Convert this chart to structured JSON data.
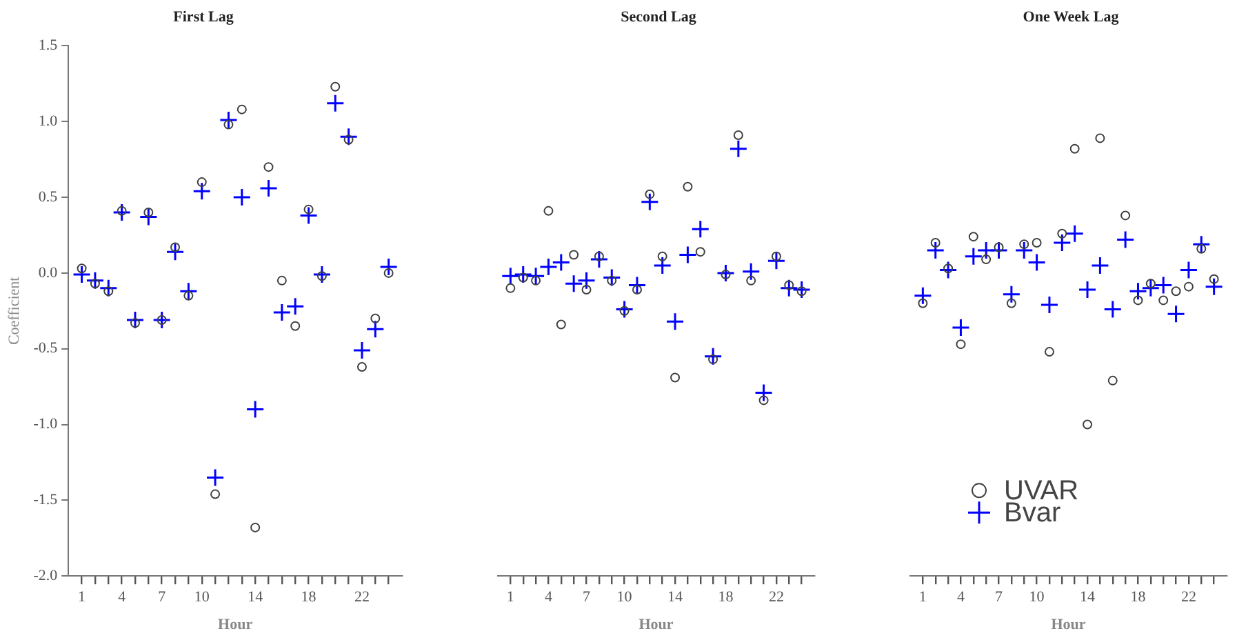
{
  "chart_data": [
    {
      "type": "scatter",
      "title": "First Lag",
      "xlabel": "Hour",
      "ylabel": "Coefficient",
      "x": [
        1,
        2,
        3,
        4,
        5,
        6,
        7,
        8,
        9,
        10,
        11,
        12,
        13,
        14,
        15,
        16,
        17,
        18,
        19,
        20,
        21,
        22,
        23,
        24
      ],
      "series": [
        {
          "color": "#404040",
          "marker": "circle",
          "values": [
            0.03,
            -0.07,
            -0.12,
            0.41,
            -0.33,
            0.4,
            -0.31,
            0.17,
            -0.15,
            0.6,
            -1.46,
            0.98,
            1.08,
            -1.68,
            0.7,
            -0.05,
            -0.35,
            0.42,
            -0.02,
            1.23,
            0.88,
            -0.62,
            -0.3,
            0.0
          ]
        },
        {
          "color": "#0000ff",
          "marker": "cross",
          "values": [
            -0.01,
            -0.05,
            -0.1,
            0.4,
            -0.31,
            0.37,
            -0.31,
            0.14,
            -0.12,
            0.54,
            -1.35,
            1.01,
            0.5,
            -0.9,
            0.56,
            -0.26,
            -0.22,
            0.38,
            -0.01,
            1.12,
            0.9,
            -0.51,
            -0.37,
            0.04
          ]
        }
      ],
      "xlim": [
        0,
        25
      ],
      "xticks": [
        1,
        {
          "value": 2,
          "label": null
        },
        {
          "value": 3,
          "label": null
        },
        4,
        {
          "value": 5,
          "label": null
        },
        {
          "value": 6,
          "label": null
        },
        7,
        {
          "value": 8,
          "label": null
        },
        {
          "value": 9,
          "label": null
        },
        10,
        {
          "value": 11,
          "label": null
        },
        {
          "value": 12,
          "label": null
        },
        {
          "value": 13,
          "label": null
        },
        14,
        {
          "value": 15,
          "label": null
        },
        {
          "value": 16,
          "label": null
        },
        {
          "value": 17,
          "label": null
        },
        18,
        {
          "value": 19,
          "label": null
        },
        {
          "value": 20,
          "label": null
        },
        {
          "value": 21,
          "label": null
        },
        22,
        {
          "value": 23,
          "label": null
        },
        {
          "value": 24,
          "label": null
        }
      ],
      "ylim": [
        -2,
        1.5
      ],
      "yticks": [
        {
          "value": -2,
          "label": "-2.0"
        },
        {
          "value": -1.5,
          "label": "-1.5"
        },
        {
          "value": -1,
          "label": "-1.0"
        },
        {
          "value": -0.5,
          "label": "-0.5"
        },
        {
          "value": 0,
          "label": "0.0"
        },
        {
          "value": 0.5,
          "label": "0.5"
        },
        {
          "value": 1,
          "label": "1.0"
        },
        {
          "value": 1.5,
          "label": "1.5"
        }
      ],
      "grid": false,
      "legend": false
    },
    {
      "type": "scatter",
      "title": "Second Lag",
      "xlabel": "Hour",
      "x": [
        1,
        2,
        3,
        4,
        5,
        6,
        7,
        8,
        9,
        10,
        11,
        12,
        13,
        14,
        15,
        16,
        17,
        18,
        19,
        20,
        21,
        22,
        23,
        24
      ],
      "series": [
        {
          "color": "#404040",
          "marker": "circle",
          "values": [
            -0.1,
            -0.03,
            -0.05,
            0.41,
            -0.34,
            0.12,
            -0.11,
            0.11,
            -0.05,
            -0.25,
            -0.11,
            0.52,
            0.11,
            -0.69,
            0.57,
            0.14,
            -0.57,
            -0.01,
            0.91,
            -0.05,
            -0.84,
            0.11,
            -0.08,
            -0.12
          ]
        },
        {
          "color": "#0000ff",
          "marker": "cross",
          "values": [
            -0.02,
            -0.01,
            -0.02,
            0.04,
            0.07,
            -0.07,
            -0.05,
            0.09,
            -0.03,
            -0.24,
            -0.08,
            0.47,
            0.05,
            -0.32,
            0.12,
            0.29,
            -0.55,
            0.0,
            0.82,
            0.01,
            -0.79,
            0.08,
            -0.1,
            -0.11
          ]
        }
      ],
      "xlim": [
        0,
        25
      ],
      "xticks": [
        1,
        {
          "value": 2,
          "label": null
        },
        {
          "value": 3,
          "label": null
        },
        4,
        {
          "value": 5,
          "label": null
        },
        {
          "value": 6,
          "label": null
        },
        7,
        {
          "value": 8,
          "label": null
        },
        {
          "value": 9,
          "label": null
        },
        10,
        {
          "value": 11,
          "label": null
        },
        {
          "value": 12,
          "label": null
        },
        {
          "value": 13,
          "label": null
        },
        14,
        {
          "value": 15,
          "label": null
        },
        {
          "value": 16,
          "label": null
        },
        {
          "value": 17,
          "label": null
        },
        18,
        {
          "value": 19,
          "label": null
        },
        {
          "value": 20,
          "label": null
        },
        {
          "value": 21,
          "label": null
        },
        22,
        {
          "value": 23,
          "label": null
        },
        {
          "value": 24,
          "label": null
        }
      ],
      "ylim": [
        -2,
        1.5
      ],
      "tick_labels": "x",
      "grid": false,
      "legend": false
    },
    {
      "type": "scatter",
      "title": "One Week Lag",
      "xlabel": "Hour",
      "x": [
        1,
        2,
        3,
        4,
        5,
        6,
        7,
        8,
        9,
        10,
        11,
        12,
        13,
        14,
        15,
        16,
        17,
        18,
        19,
        20,
        21,
        22,
        23,
        24
      ],
      "series": [
        {
          "name": "UVAR",
          "color": "#404040",
          "marker": "circle",
          "values": [
            -0.2,
            0.2,
            0.03,
            -0.47,
            0.24,
            0.09,
            0.17,
            -0.2,
            0.19,
            0.2,
            -0.52,
            0.26,
            0.82,
            -1.0,
            0.89,
            -0.71,
            0.38,
            -0.18,
            -0.07,
            -0.18,
            -0.12,
            -0.09,
            0.16,
            -0.04
          ]
        },
        {
          "name": "Bvar",
          "color": "#0000ff",
          "marker": "cross",
          "values": [
            -0.15,
            0.15,
            0.02,
            -0.36,
            0.11,
            0.15,
            0.15,
            -0.14,
            0.15,
            0.07,
            -0.21,
            0.2,
            0.26,
            -0.11,
            0.05,
            -0.24,
            0.22,
            -0.12,
            -0.1,
            -0.08,
            -0.27,
            0.02,
            0.19,
            -0.09
          ]
        }
      ],
      "xlim": [
        0,
        25
      ],
      "xticks": [
        1,
        {
          "value": 2,
          "label": null
        },
        {
          "value": 3,
          "label": null
        },
        4,
        {
          "value": 5,
          "label": null
        },
        {
          "value": 6,
          "label": null
        },
        7,
        {
          "value": 8,
          "label": null
        },
        {
          "value": 9,
          "label": null
        },
        10,
        {
          "value": 11,
          "label": null
        },
        {
          "value": 12,
          "label": null
        },
        {
          "value": 13,
          "label": null
        },
        14,
        {
          "value": 15,
          "label": null
        },
        {
          "value": 16,
          "label": null
        },
        {
          "value": 17,
          "label": null
        },
        18,
        {
          "value": 19,
          "label": null
        },
        {
          "value": 20,
          "label": null
        },
        {
          "value": 21,
          "label": null
        },
        22,
        {
          "value": 23,
          "label": null
        },
        {
          "value": 24,
          "label": null
        }
      ],
      "ylim": [
        -2,
        1.5
      ],
      "tick_labels": "x",
      "grid": false,
      "legend": "bottom"
    }
  ]
}
